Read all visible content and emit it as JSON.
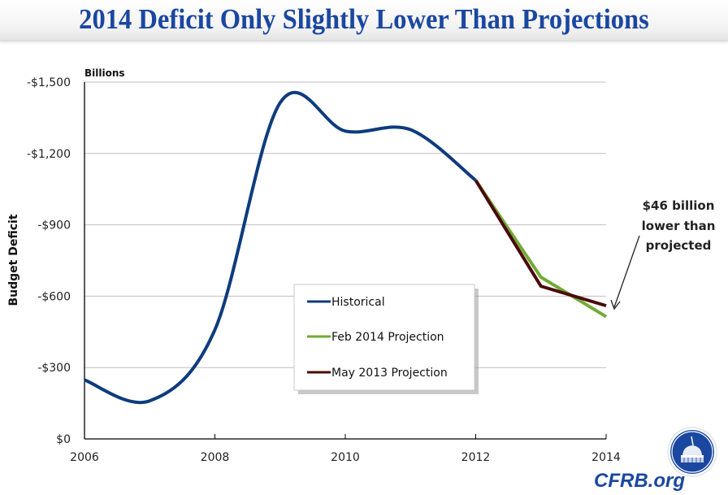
{
  "title": "2014 Deficit Only Slightly Lower Than Projections",
  "brand": "CFRB.org",
  "logo_icon": "capitol-dome-icon",
  "colors": {
    "title": "#1a47a0",
    "historical": "#0d3c7d",
    "feb2014": "#72ab35",
    "may2013": "#4a0a0a",
    "grid": "#bfbfbf"
  },
  "chart_data": {
    "type": "line",
    "title": "2014 Deficit Only Slightly Lower Than Projections",
    "units_label": "Billions",
    "xlabel": "",
    "ylabel": "Budget Deficit",
    "xlim": [
      2006,
      2014
    ],
    "ylim": [
      0,
      1500
    ],
    "x_ticks": [
      2006,
      2008,
      2010,
      2012,
      2014
    ],
    "x_tick_labels": [
      "2006",
      "2008",
      "2010",
      "2012",
      "2014"
    ],
    "y_ticks": [
      0,
      300,
      600,
      900,
      1200,
      1500
    ],
    "y_tick_labels": [
      "$0",
      "-$300",
      "-$600",
      "-$900",
      "-$1,200",
      "-$1,500"
    ],
    "grid": true,
    "legend_position": "center-bottom",
    "series": [
      {
        "name": "Historical",
        "smooth": true,
        "x": [
          2006,
          2007,
          2008,
          2009,
          2010,
          2011,
          2012
        ],
        "values": [
          248,
          160,
          459,
          1413,
          1294,
          1300,
          1087
        ]
      },
      {
        "name": "Feb 2014 Projection",
        "smooth": false,
        "x": [
          2012,
          2013,
          2014
        ],
        "values": [
          1087,
          680,
          514
        ]
      },
      {
        "name": "May 2013 Projection",
        "smooth": false,
        "x": [
          2012,
          2013,
          2014
        ],
        "values": [
          1087,
          642,
          560
        ]
      }
    ],
    "annotations": [
      {
        "text_lines": [
          "$46 billion",
          "lower than",
          "projected"
        ],
        "points_to": {
          "x": 2014,
          "value": 560
        }
      }
    ]
  }
}
